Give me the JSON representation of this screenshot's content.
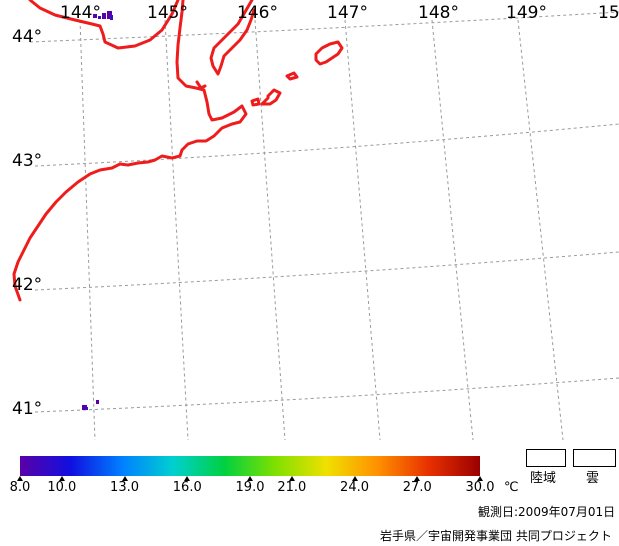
{
  "map": {
    "lon_labels": [
      "144°",
      "145°",
      "146°",
      "147°",
      "148°",
      "149°",
      "15"
    ],
    "lat_labels": [
      "44°",
      "43°",
      "42°",
      "41°"
    ],
    "coastline_color": "#ee1c1c",
    "grid_color": "#9a9a9a",
    "land_label": "陸域",
    "cloud_label": "雲"
  },
  "colorbar": {
    "ticks": [
      "8.0",
      "10.0",
      "13.0",
      "16.0",
      "19.0",
      "21.0",
      "24.0",
      "27.0",
      "30.0"
    ],
    "unit": "℃",
    "colors": [
      "#5a00a8",
      "#1010e0",
      "#0080ff",
      "#00d0d0",
      "#00d040",
      "#80e000",
      "#f0e000",
      "#ff9000",
      "#e83000",
      "#9a0000"
    ]
  },
  "footer": {
    "observation_date": "観測日:2009年07月01日",
    "credit": "岩手県／宇宙開発事業団 共同プロジェクト"
  }
}
